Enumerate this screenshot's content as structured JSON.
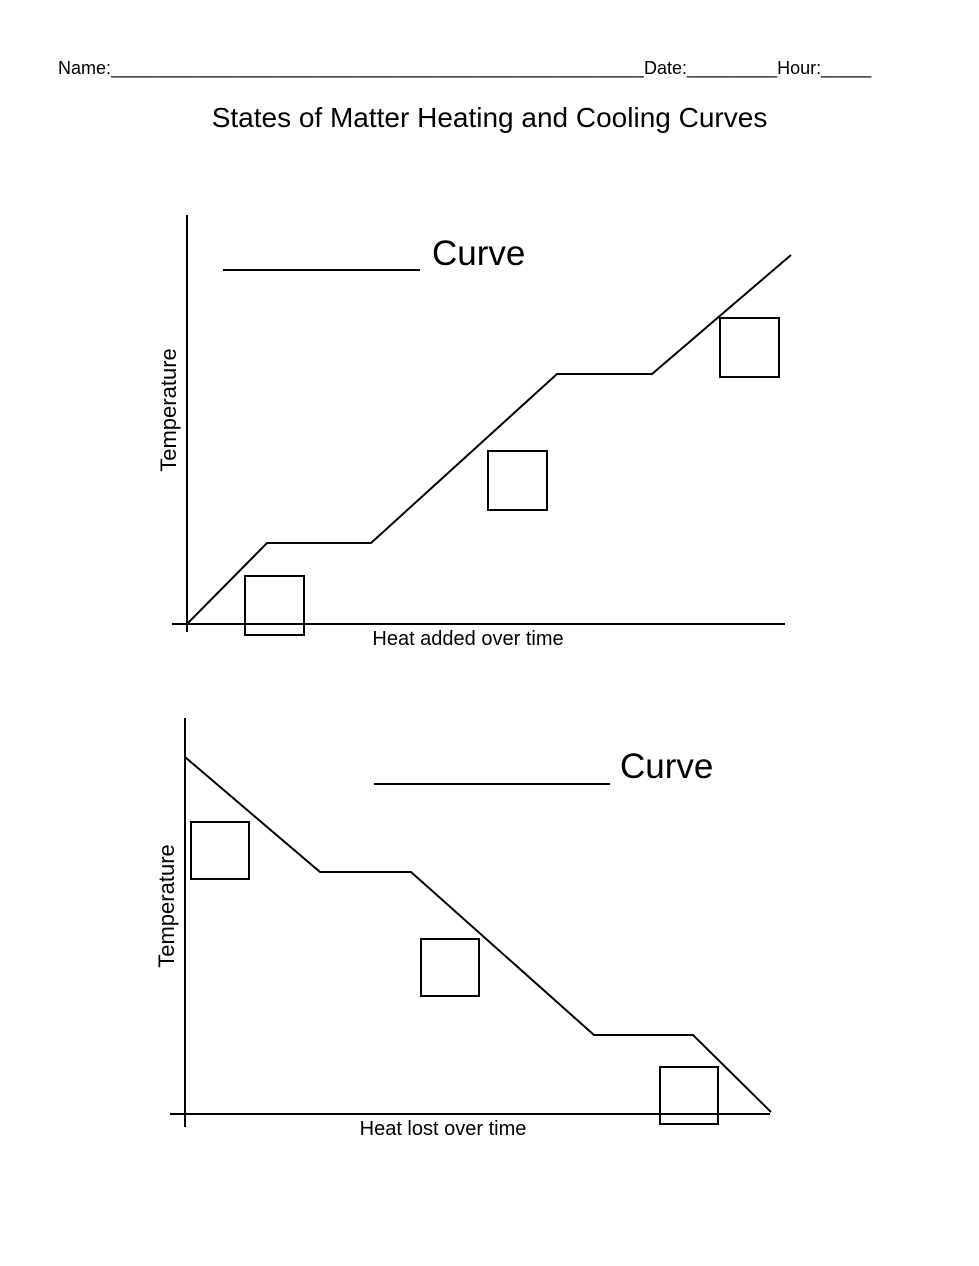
{
  "header": {
    "name_label": "Name:",
    "name_blank": "_______________________________________________________",
    "date_label": "Date:",
    "date_blank": "_________",
    "hour_label": "Hour:",
    "hour_blank": "_____"
  },
  "title": "States of Matter Heating and Cooling Curves",
  "heating_graph": {
    "curve_label": "Curve",
    "y_axis_label": "Temperature",
    "x_axis_label": "Heat added over time"
  },
  "cooling_graph": {
    "curve_label": "Curve",
    "y_axis_label": "Temperature",
    "x_axis_label": "Heat lost over time"
  }
}
